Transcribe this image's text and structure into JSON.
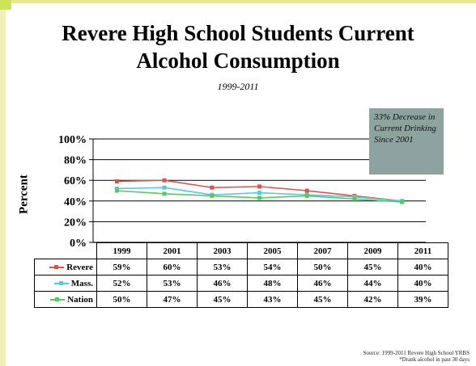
{
  "title_line1": "Revere High School Students Current",
  "title_line2": "Alcohol Consumption",
  "subtitle": "1999-2011",
  "note": "33% Decrease in Current Drinking Since 2001",
  "source_line1": "Source: 1999-2011 Revere High School YRBS",
  "source_line2": "*Drank alcohol in past 30 days",
  "chart_data": {
    "type": "line",
    "categories": [
      "1999",
      "2001",
      "2003",
      "2005",
      "2007",
      "2009",
      "2011"
    ],
    "ylabel": "Percent",
    "ylim": [
      0,
      100
    ],
    "yticks": [
      "0%",
      "20%",
      "40%",
      "60%",
      "80%",
      "100%"
    ],
    "legend_placement": "bottom (data table)",
    "grid": true,
    "series": [
      {
        "name": "Revere",
        "color": "#d9534f",
        "values": [
          59,
          60,
          53,
          54,
          50,
          45,
          40
        ],
        "labels": [
          "59%",
          "60%",
          "53%",
          "54%",
          "50%",
          "45%",
          "40%"
        ]
      },
      {
        "name": "Mass.",
        "color": "#5bc8d9",
        "values": [
          52,
          53,
          46,
          48,
          46,
          44,
          40
        ],
        "labels": [
          "52%",
          "53%",
          "46%",
          "48%",
          "46%",
          "44%",
          "40%"
        ]
      },
      {
        "name": "Nation",
        "color": "#5ec46a",
        "values": [
          50,
          47,
          45,
          43,
          45,
          42,
          39
        ],
        "labels": [
          "50%",
          "47%",
          "45%",
          "43%",
          "45%",
          "42%",
          "39%"
        ]
      }
    ]
  }
}
